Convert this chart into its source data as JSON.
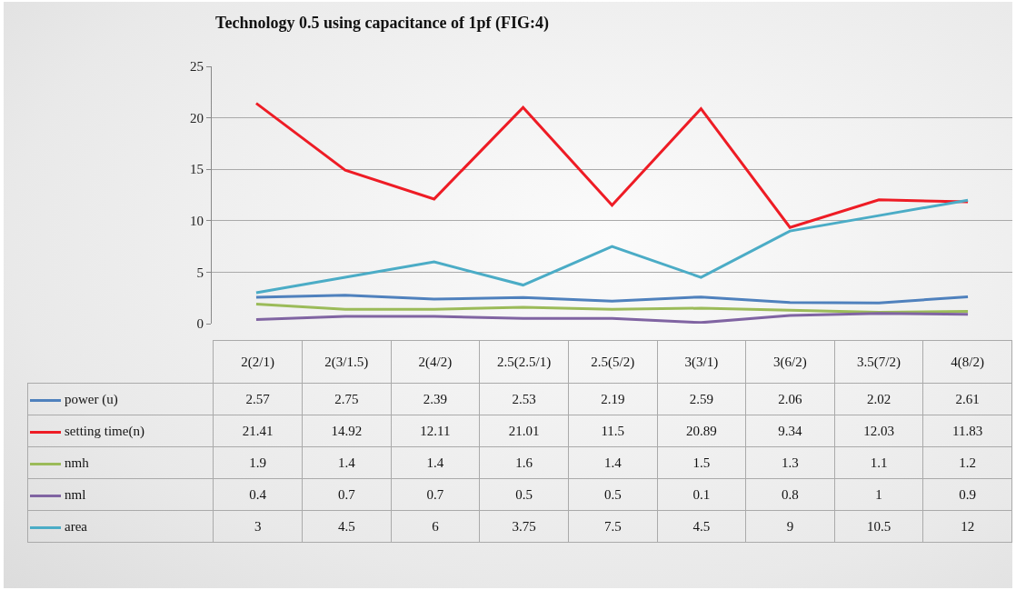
{
  "chart_data": {
    "type": "line",
    "title": "Technology 0.5 using capacitance of 1pf (FIG:4)",
    "categories": [
      "2(2/1)",
      "2(3/1.5)",
      "2(4/2)",
      "2.5(2.5/1)",
      "2.5(5/2)",
      "3(3/1)",
      "3(6/2)",
      "3.5(7/2)",
      "4(8/2)"
    ],
    "series": [
      {
        "name": "power (u)",
        "color": "#4f81bd",
        "values": [
          2.57,
          2.75,
          2.39,
          2.53,
          2.19,
          2.59,
          2.06,
          2.02,
          2.61
        ]
      },
      {
        "name": "setting time(n)",
        "color": "#ee1c25",
        "values": [
          21.41,
          14.92,
          12.11,
          21.01,
          11.5,
          20.89,
          9.34,
          12.03,
          11.83
        ]
      },
      {
        "name": "nmh",
        "color": "#9bbb59",
        "values": [
          1.9,
          1.4,
          1.4,
          1.6,
          1.4,
          1.5,
          1.3,
          1.1,
          1.2
        ]
      },
      {
        "name": "nml",
        "color": "#8064a2",
        "values": [
          0.4,
          0.7,
          0.7,
          0.5,
          0.5,
          0.1,
          0.8,
          1,
          0.9
        ]
      },
      {
        "name": "area",
        "color": "#4bacc6",
        "values": [
          3,
          4.5,
          6,
          3.75,
          7.5,
          4.5,
          9,
          10.5,
          12
        ]
      }
    ],
    "ylim": [
      0,
      25
    ],
    "yticks": [
      0,
      5,
      10,
      15,
      20,
      25
    ],
    "grid": "y",
    "legend": "bottom",
    "data_labels": true,
    "marker": "none"
  }
}
